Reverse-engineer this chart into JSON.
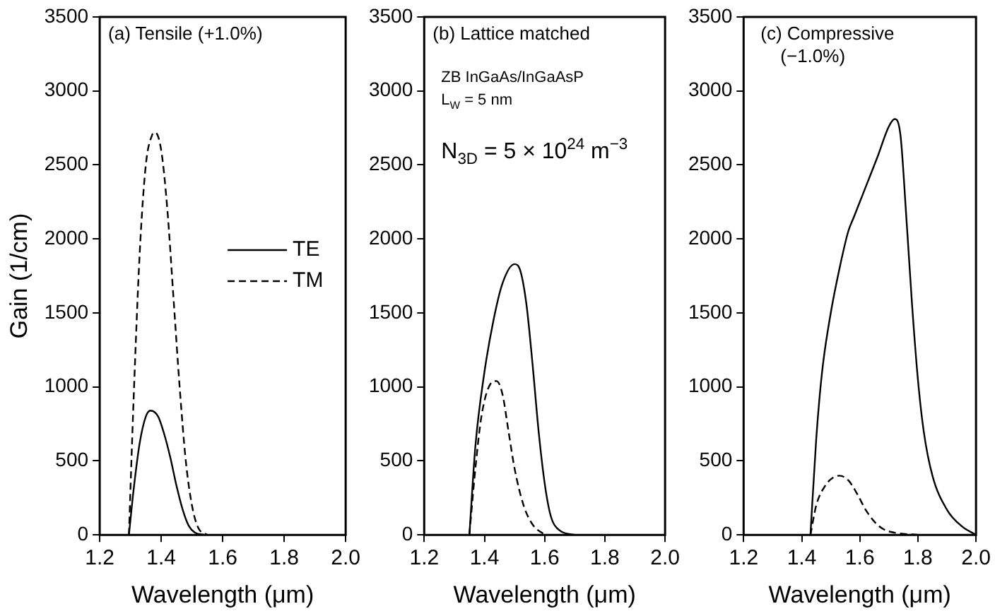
{
  "chart_data": [
    {
      "type": "line",
      "xlabel": "Wavelength (μm)",
      "ylabel": "Gain (1/cm)",
      "xlim": [
        1.2,
        2.0
      ],
      "xticks": [
        {
          "value": 1.2,
          "label": "1.2"
        },
        {
          "value": 1.4,
          "label": "1.4"
        },
        {
          "value": 1.6,
          "label": "1.6"
        },
        {
          "value": 1.8,
          "label": "1.8"
        },
        {
          "value": 2.0,
          "label": "2.0"
        }
      ],
      "ylim": [
        0,
        3500
      ],
      "yticks": [
        0,
        500,
        1000,
        1500,
        2000,
        2500,
        3000,
        3500
      ],
      "grid": false,
      "legend": "right",
      "annotations": [
        "(a) Tensile (+1.0%)"
      ],
      "series": [
        {
          "name": "TE",
          "color": "#000000",
          "line_style": "solid",
          "x": [
            1.295,
            1.31,
            1.33,
            1.35,
            1.365,
            1.39,
            1.41,
            1.43,
            1.45,
            1.47,
            1.49,
            1.51,
            1.54
          ],
          "values": [
            0,
            300,
            620,
            800,
            840,
            800,
            680,
            520,
            330,
            170,
            60,
            15,
            0
          ]
        },
        {
          "name": "TM",
          "color": "#000000",
          "line_style": "dashed",
          "x": [
            1.295,
            1.31,
            1.33,
            1.35,
            1.37,
            1.38,
            1.4,
            1.42,
            1.44,
            1.46,
            1.48,
            1.5,
            1.52,
            1.55
          ],
          "values": [
            0,
            900,
            1900,
            2500,
            2700,
            2720,
            2600,
            2200,
            1600,
            1000,
            500,
            200,
            50,
            0
          ]
        }
      ]
    },
    {
      "type": "line",
      "xlabel": "Wavelength (μm)",
      "xlim": [
        1.2,
        2.0
      ],
      "xticks": [
        {
          "value": 1.2,
          "label": "1.2"
        },
        {
          "value": 1.4,
          "label": "1.4"
        },
        {
          "value": 1.6,
          "label": "1.6"
        },
        {
          "value": 1.8,
          "label": "1.8"
        },
        {
          "value": 2.0,
          "label": "2.0"
        }
      ],
      "ylim": [
        0,
        3500
      ],
      "yticks": [
        0,
        500,
        1000,
        1500,
        2000,
        2500,
        3000,
        3500
      ],
      "grid": false,
      "annotations": [
        "(b) Lattice matched",
        "ZB InGaAs/InGaAsP",
        "L$_{W}$ = 5 nm",
        "N$_{3D}$ = 5 × 10$^{24}$ m$^{−3}$"
      ],
      "series": [
        {
          "color": "#000000",
          "line_style": "solid",
          "x": [
            1.35,
            1.37,
            1.4,
            1.43,
            1.46,
            1.5,
            1.52,
            1.54,
            1.56,
            1.58,
            1.6,
            1.62,
            1.65,
            1.7
          ],
          "values": [
            0,
            600,
            1100,
            1450,
            1700,
            1830,
            1780,
            1550,
            1150,
            700,
            350,
            130,
            30,
            0
          ]
        },
        {
          "color": "#000000",
          "line_style": "dashed",
          "x": [
            1.35,
            1.37,
            1.39,
            1.42,
            1.44,
            1.46,
            1.48,
            1.5,
            1.53,
            1.56,
            1.6
          ],
          "values": [
            0,
            450,
            800,
            1020,
            1040,
            950,
            700,
            450,
            200,
            70,
            0
          ]
        }
      ]
    },
    {
      "type": "line",
      "xlabel": "Wavelength (μm)",
      "xlim": [
        1.2,
        2.0
      ],
      "xticks": [
        {
          "value": 1.2,
          "label": "1.2"
        },
        {
          "value": 1.4,
          "label": "1.4"
        },
        {
          "value": 1.6,
          "label": "1.6"
        },
        {
          "value": 1.8,
          "label": "1.8"
        },
        {
          "value": 2.0,
          "label": "2.0"
        }
      ],
      "ylim": [
        0,
        3500
      ],
      "yticks": [
        0,
        500,
        1000,
        1500,
        2000,
        2500,
        3000,
        3500
      ],
      "grid": false,
      "annotations": [
        "(c) Compressive",
        "(−1.0%)"
      ],
      "series": [
        {
          "color": "#000000",
          "line_style": "solid",
          "x": [
            1.43,
            1.45,
            1.47,
            1.5,
            1.53,
            1.56,
            1.58,
            1.62,
            1.66,
            1.7,
            1.72,
            1.74,
            1.76,
            1.78,
            1.8,
            1.82,
            1.85,
            1.9,
            1.95,
            2.0
          ],
          "values": [
            0,
            650,
            1100,
            1500,
            1800,
            2050,
            2150,
            2350,
            2550,
            2760,
            2810,
            2700,
            2150,
            1550,
            1050,
            700,
            400,
            170,
            60,
            0
          ]
        },
        {
          "color": "#000000",
          "line_style": "dashed",
          "x": [
            1.43,
            1.45,
            1.48,
            1.51,
            1.53,
            1.56,
            1.59,
            1.62,
            1.65,
            1.68,
            1.72,
            1.8
          ],
          "values": [
            0,
            200,
            330,
            390,
            400,
            370,
            280,
            170,
            90,
            40,
            15,
            0
          ]
        }
      ]
    }
  ]
}
